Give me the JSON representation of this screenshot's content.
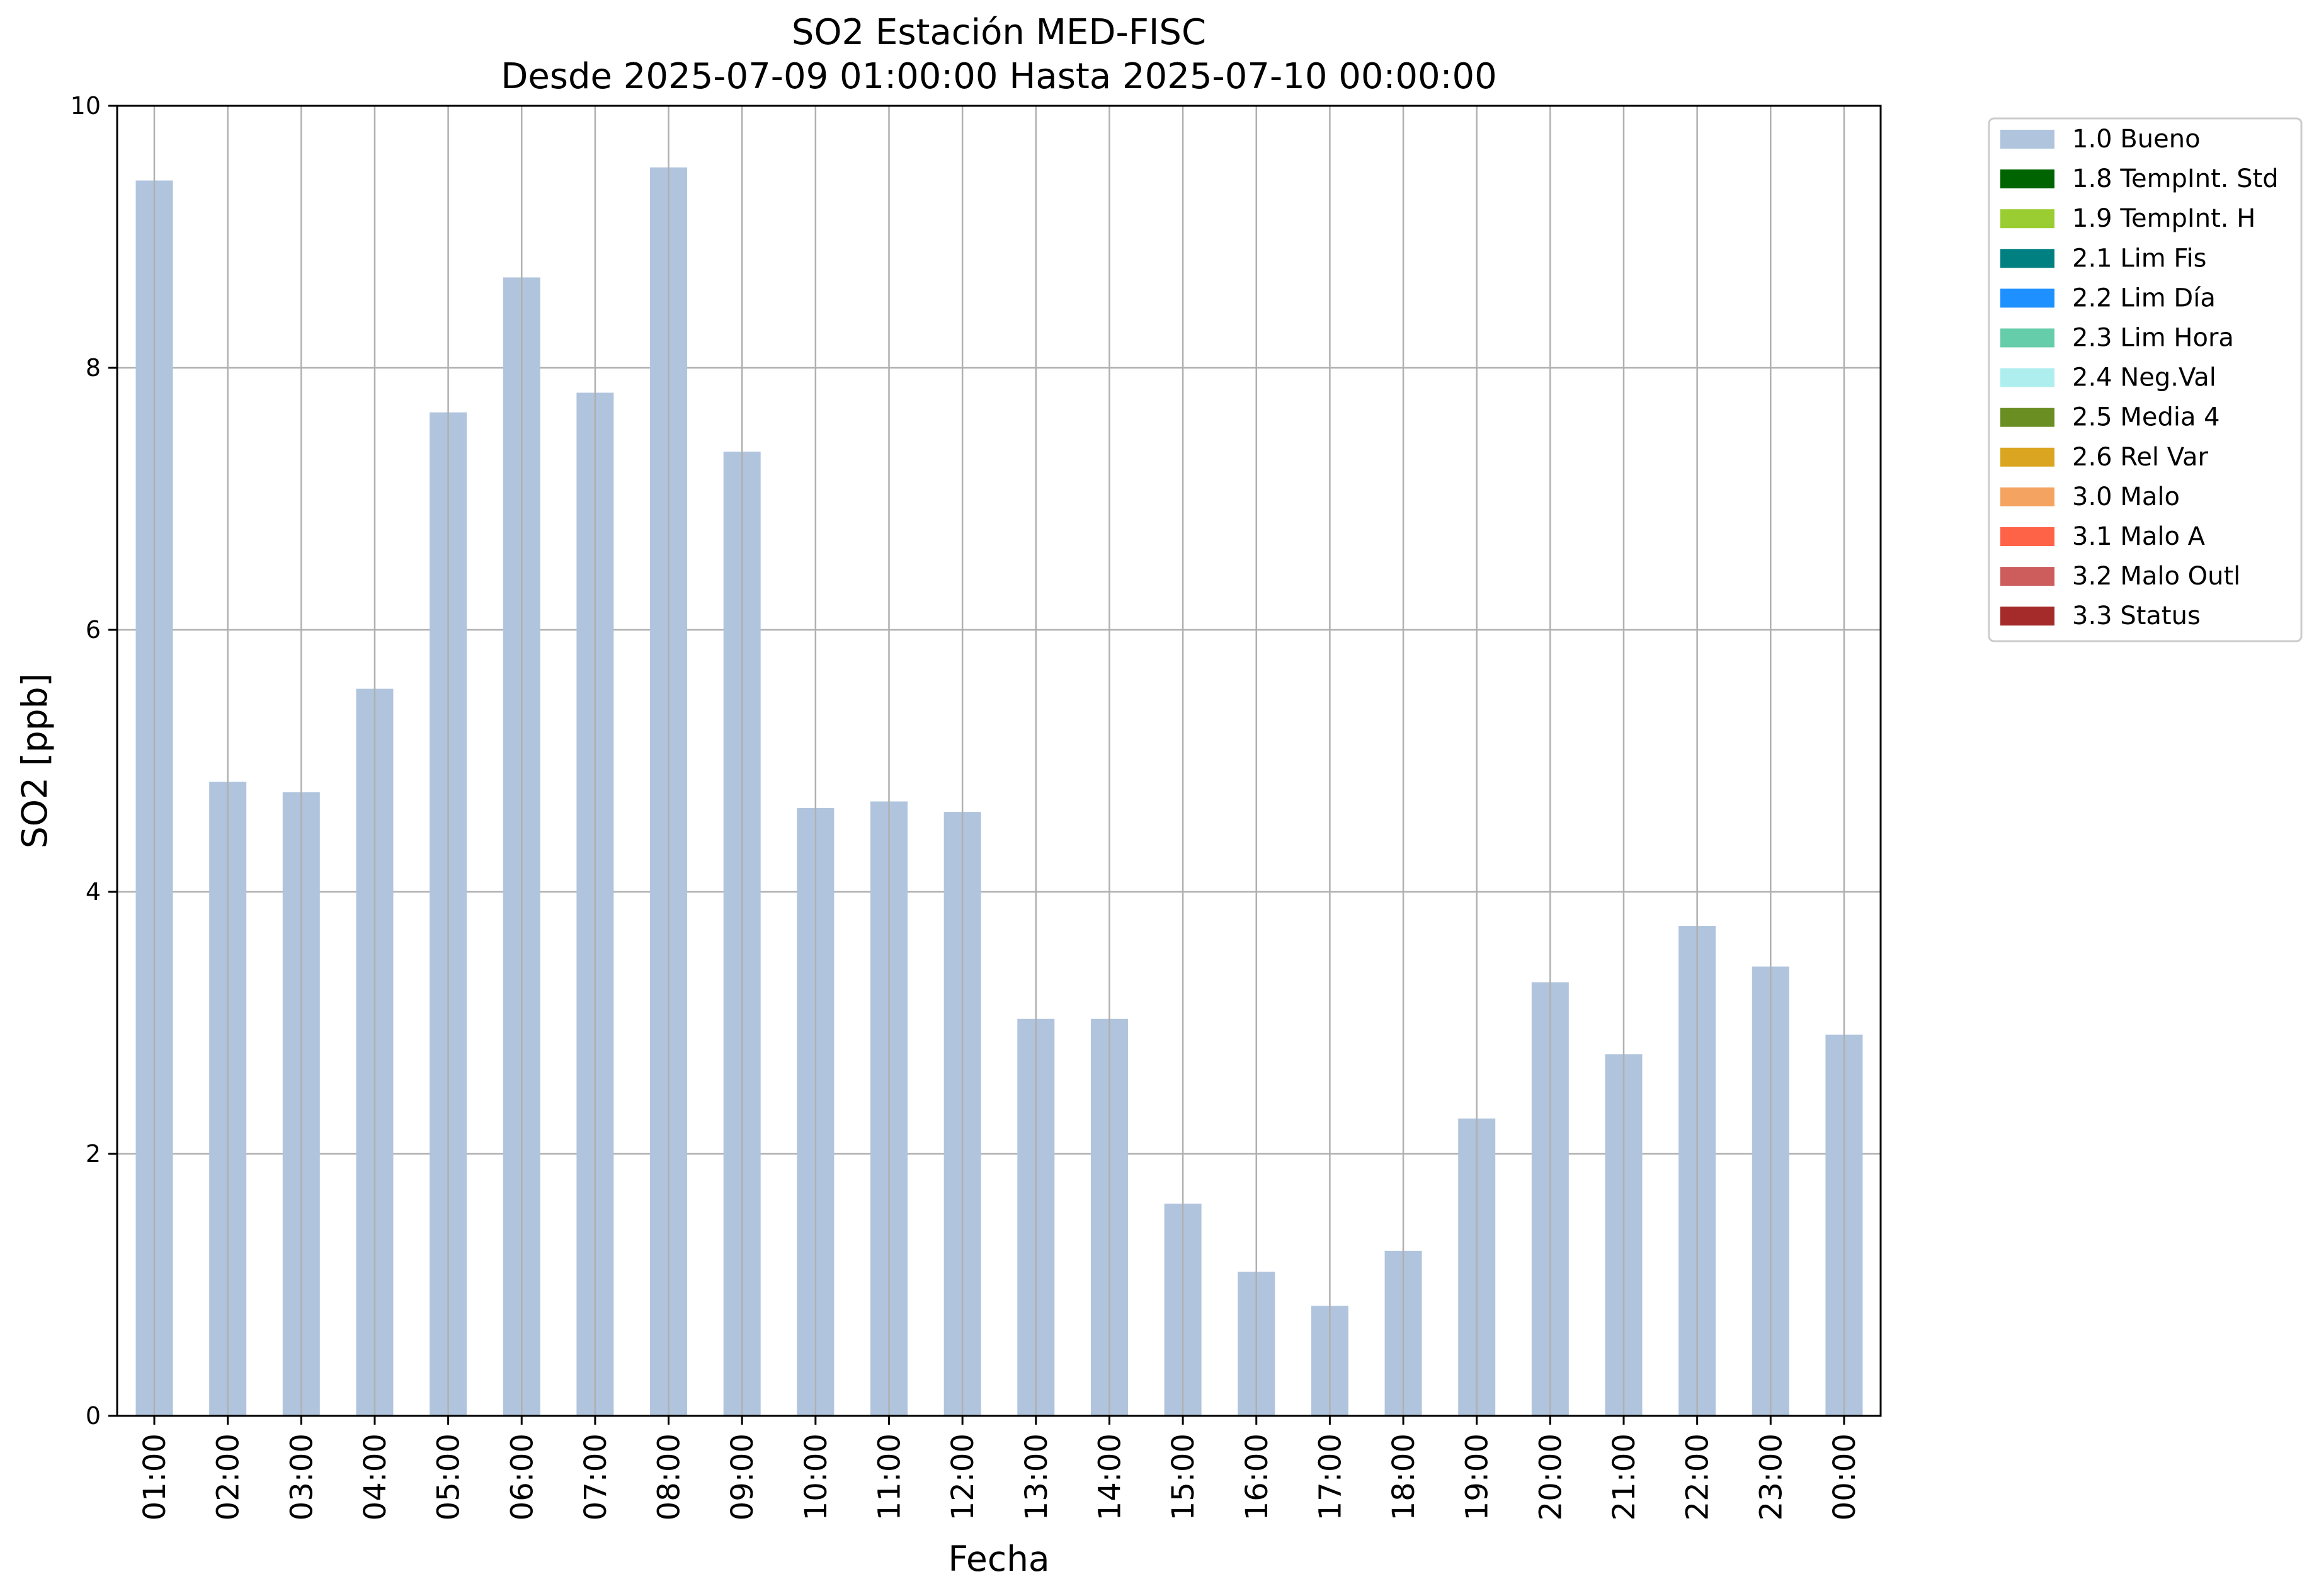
{
  "chart_data": {
    "type": "bar",
    "title": "SO2 Estación MED-FISC",
    "subtitle": "Desde 2025-07-09 01:00:00 Hasta 2025-07-10 00:00:00",
    "xlabel": "Fecha",
    "ylabel": "SO2 [ppb]",
    "ylim": [
      0,
      10
    ],
    "yticks": [
      "0",
      "2",
      "4",
      "6",
      "8",
      "10"
    ],
    "grid": true,
    "legend_position": "outside-top-right",
    "categories": [
      "01:00",
      "02:00",
      "03:00",
      "04:00",
      "05:00",
      "06:00",
      "07:00",
      "08:00",
      "09:00",
      "10:00",
      "11:00",
      "12:00",
      "13:00",
      "14:00",
      "15:00",
      "16:00",
      "17:00",
      "18:00",
      "19:00",
      "20:00",
      "21:00",
      "22:00",
      "23:00",
      "00:00"
    ],
    "series": [
      {
        "name": "1.0 Bueno",
        "color": "#b0c4de",
        "values": [
          9.43,
          4.84,
          4.76,
          5.55,
          7.66,
          8.69,
          7.81,
          9.53,
          7.36,
          4.64,
          4.69,
          4.61,
          3.03,
          3.03,
          1.62,
          1.1,
          0.84,
          1.26,
          2.27,
          3.31,
          2.76,
          3.74,
          3.43,
          2.91
        ]
      }
    ],
    "legend": [
      {
        "label": "1.0 Bueno",
        "color": "#b0c4de"
      },
      {
        "label": "1.8 TempInt. Std",
        "color": "#006400"
      },
      {
        "label": "1.9 TempInt. H",
        "color": "#9acd32"
      },
      {
        "label": "2.1 Lim Fis",
        "color": "#008080"
      },
      {
        "label": "2.2 Lim Día",
        "color": "#1e90ff"
      },
      {
        "label": "2.3 Lim Hora",
        "color": "#66cdaa"
      },
      {
        "label": "2.4 Neg.Val",
        "color": "#afeeee"
      },
      {
        "label": "2.5 Media 4",
        "color": "#6b8e23"
      },
      {
        "label": "2.6 Rel Var",
        "color": "#daa520"
      },
      {
        "label": "3.0 Malo",
        "color": "#f4a460"
      },
      {
        "label": "3.1 Malo A",
        "color": "#ff6347"
      },
      {
        "label": "3.2 Malo Outl",
        "color": "#cd5c5c"
      },
      {
        "label": "3.3 Status",
        "color": "#a52a2a"
      }
    ]
  }
}
